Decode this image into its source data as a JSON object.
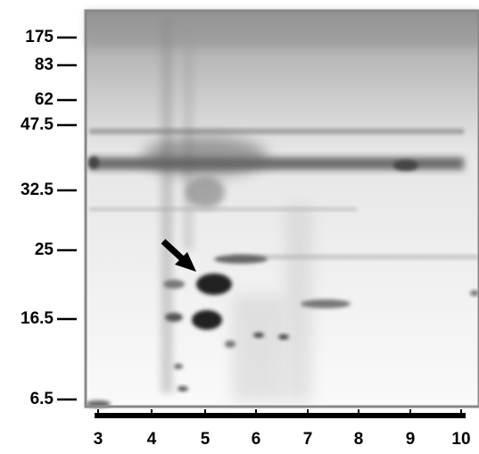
{
  "mass_markers": [
    "175",
    "83",
    "62",
    "47.5",
    "32.5",
    "25",
    "16.5",
    "6.5"
  ],
  "pi_labels": [
    "3",
    "4",
    "5",
    "6",
    "7",
    "8",
    "9",
    "10"
  ]
}
